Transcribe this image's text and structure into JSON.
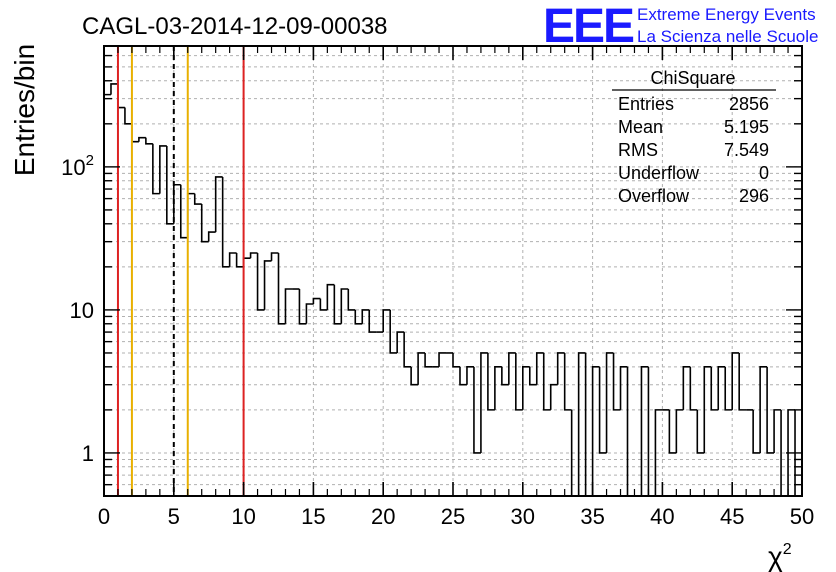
{
  "chart_data": {
    "type": "histogram",
    "title": "CAGL-03-2014-12-09-00038",
    "xlabel": "χ",
    "xlabel_sup": "2",
    "ylabel": "Entries/bin",
    "xlim": [
      0,
      50
    ],
    "ylim": [
      0.5,
      700
    ],
    "yscale": "log",
    "grid": true,
    "bin_width": 0.5,
    "x_ticks": [
      "0",
      "5",
      "10",
      "15",
      "20",
      "25",
      "30",
      "35",
      "40",
      "45",
      "50"
    ],
    "y_ticks": [
      {
        "value": 1,
        "label": "1"
      },
      {
        "value": 10,
        "label": "10"
      },
      {
        "value": 100,
        "label": "10",
        "sup": "2"
      }
    ],
    "values": [
      320,
      380,
      260,
      200,
      150,
      160,
      145,
      65,
      140,
      40,
      75,
      32,
      65,
      55,
      30,
      35,
      85,
      20,
      25,
      20,
      23,
      25,
      10,
      22,
      25,
      8,
      14,
      14,
      8,
      11,
      12,
      10,
      15,
      8,
      14,
      10,
      8,
      10,
      7,
      7,
      10,
      5,
      7,
      4,
      3,
      5,
      4,
      4,
      5,
      5,
      4,
      3,
      4,
      1,
      5,
      2,
      4,
      3,
      5,
      2,
      4,
      3,
      5,
      2,
      3,
      5,
      2,
      0,
      5,
      0,
      4,
      1,
      5,
      2,
      4,
      0,
      0,
      4,
      0,
      2,
      2,
      1,
      2,
      4,
      2,
      1,
      4,
      2,
      4,
      2,
      5,
      2,
      2,
      1,
      4,
      1,
      2,
      0,
      2,
      0
    ],
    "vlines": [
      {
        "x": 1,
        "color": "#dd2222",
        "style": "solid"
      },
      {
        "x": 2,
        "color": "#e8b000",
        "style": "solid"
      },
      {
        "x": 5,
        "color": "#000000",
        "style": "dashed"
      },
      {
        "x": 6,
        "color": "#e8b000",
        "style": "solid"
      },
      {
        "x": 10,
        "color": "#dd2222",
        "style": "solid"
      }
    ],
    "stats": {
      "header": "ChiSquare",
      "rows": [
        {
          "label": "Entries",
          "value": "2856"
        },
        {
          "label": "Mean",
          "value": "5.195"
        },
        {
          "label": "RMS",
          "value": "7.549"
        },
        {
          "label": "Underflow",
          "value": "0"
        },
        {
          "label": "Overflow",
          "value": "296"
        }
      ]
    }
  },
  "logo": {
    "mark": "EEE",
    "line1": "Extreme Energy Events",
    "line2": "La Scienza nelle Scuole"
  },
  "colors": {
    "hist": "#000000",
    "grid": "#b0b0b0",
    "logo": "#1a1aff"
  }
}
